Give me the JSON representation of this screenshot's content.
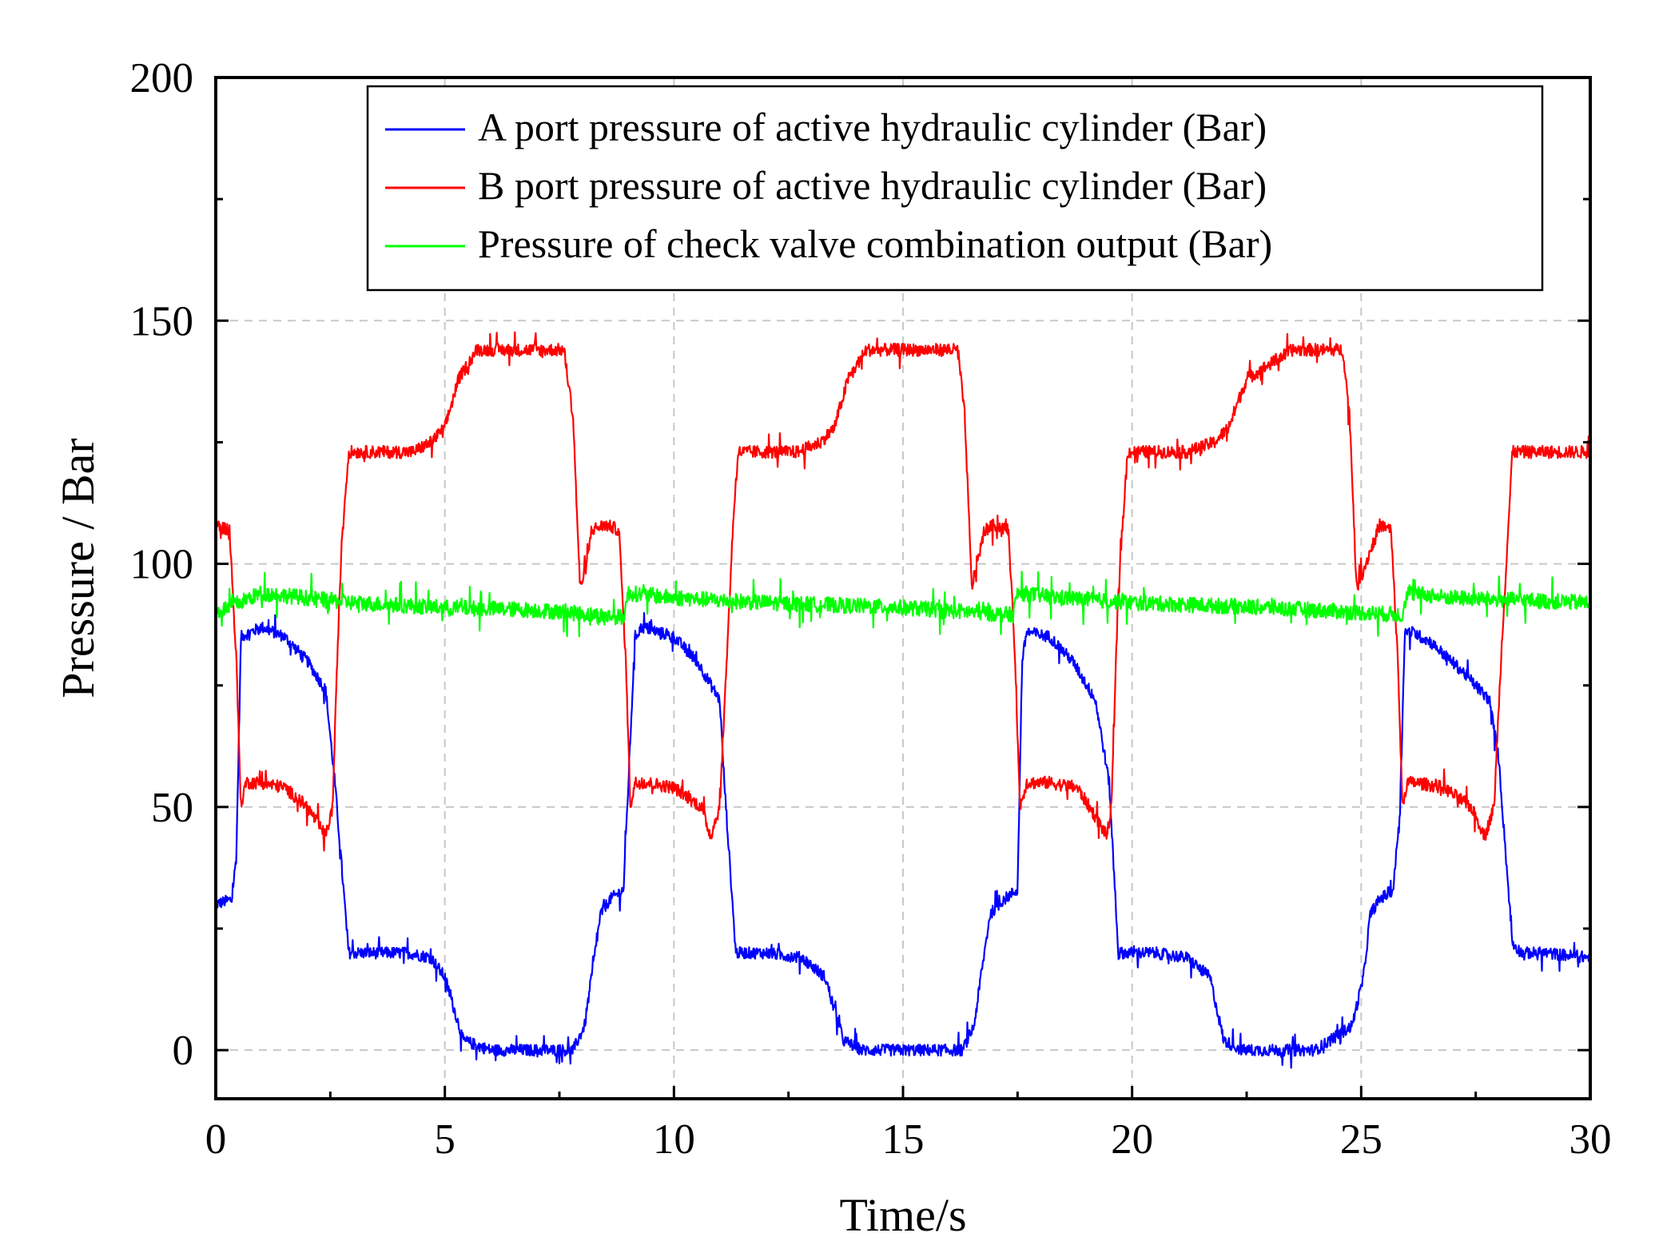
{
  "chart_data": {
    "type": "line",
    "title": "",
    "xlabel": "Time/s",
    "ylabel": "Pressure / Bar",
    "xlim": [
      0,
      30
    ],
    "ylim": [
      -10,
      200
    ],
    "xticks": [
      0,
      5,
      10,
      15,
      20,
      25,
      30
    ],
    "yticks": [
      0,
      50,
      100,
      150,
      200
    ],
    "grid": true,
    "legend_position": "top-center",
    "series": [
      {
        "name": "A port pressure of active hydraulic cylinder (Bar)",
        "color": "#0000ff",
        "x": [
          0.0,
          0.35,
          0.45,
          0.55,
          1.0,
          1.5,
          2.0,
          2.4,
          2.6,
          2.9,
          3.5,
          4.2,
          4.7,
          5.0,
          5.4,
          6.0,
          7.0,
          7.8,
          8.05,
          8.2,
          8.4,
          8.6,
          8.9,
          9.15,
          9.3,
          10.0,
          10.5,
          11.0,
          11.1,
          11.35,
          11.6,
          12.0,
          12.8,
          13.3,
          13.7,
          14.1,
          15.0,
          16.3,
          16.55,
          16.7,
          16.9,
          17.2,
          17.5,
          17.6,
          17.7,
          18.2,
          18.7,
          19.2,
          19.5,
          19.7,
          19.9,
          20.5,
          21.2,
          21.7,
          22.0,
          22.4,
          23.0,
          24.0,
          24.8,
          25.05,
          25.2,
          25.4,
          25.7,
          25.85,
          25.95,
          26.1,
          26.5,
          27.2,
          27.8,
          28.0,
          28.3,
          28.5,
          29.0,
          30.0
        ],
        "values": [
          30,
          31,
          40,
          85,
          87,
          85,
          80,
          74,
          55,
          20,
          20,
          20,
          19,
          15,
          2,
          0,
          0,
          0,
          5,
          15,
          28,
          31,
          33,
          85,
          87,
          85,
          80,
          72,
          55,
          20,
          20,
          20,
          19,
          15,
          2,
          0,
          0,
          0,
          5,
          15,
          28,
          31,
          33,
          80,
          86,
          85,
          80,
          72,
          55,
          20,
          20,
          20,
          19,
          15,
          2,
          0,
          0,
          0,
          5,
          15,
          28,
          31,
          33,
          50,
          86,
          86,
          84,
          78,
          72,
          60,
          22,
          20,
          20,
          19
        ]
      },
      {
        "name": "B port pressure of active hydraulic cylinder (Bar)",
        "color": "#ff0000",
        "x": [
          0.0,
          0.3,
          0.45,
          0.55,
          0.65,
          1.0,
          1.5,
          2.0,
          2.4,
          2.55,
          2.65,
          2.75,
          2.9,
          3.0,
          3.5,
          4.3,
          4.7,
          5.0,
          5.3,
          5.7,
          6.5,
          7.6,
          7.8,
          7.95,
          8.1,
          8.2,
          8.5,
          8.8,
          8.95,
          9.05,
          9.15,
          9.4,
          10.0,
          10.6,
          10.8,
          11.0,
          11.15,
          11.3,
          11.4,
          12.0,
          12.7,
          13.2,
          13.5,
          13.8,
          14.2,
          15.0,
          16.2,
          16.35,
          16.5,
          16.6,
          16.8,
          17.0,
          17.3,
          17.45,
          17.55,
          17.7,
          18.2,
          18.8,
          19.2,
          19.45,
          19.55,
          19.7,
          19.9,
          20.5,
          21.2,
          21.8,
          22.1,
          22.5,
          23.5,
          24.6,
          24.75,
          24.9,
          25.1,
          25.4,
          25.65,
          25.8,
          25.9,
          26.0,
          26.2,
          26.8,
          27.4,
          27.7,
          27.9,
          28.05,
          28.3,
          29.0,
          30.0
        ],
        "values": [
          108,
          107,
          80,
          50,
          55,
          55,
          54,
          50,
          44,
          50,
          80,
          105,
          123,
          123,
          123,
          123,
          125,
          128,
          138,
          144,
          144,
          144,
          130,
          95,
          100,
          107,
          108,
          107,
          80,
          50,
          55,
          55,
          54,
          50,
          44,
          50,
          80,
          110,
          123,
          123,
          123,
          125,
          128,
          138,
          144,
          144,
          144,
          130,
          95,
          100,
          107,
          108,
          107,
          80,
          50,
          55,
          55,
          54,
          48,
          44,
          50,
          95,
          123,
          123,
          123,
          125,
          128,
          138,
          144,
          144,
          130,
          95,
          100,
          108,
          107,
          80,
          50,
          55,
          55,
          54,
          50,
          44,
          50,
          80,
          123,
          123,
          123
        ]
      },
      {
        "name": "Pressure of check valve combination output (Bar)",
        "color": "#00ff00",
        "x": [
          0.0,
          0.5,
          1.0,
          2.0,
          3.0,
          5.0,
          7.0,
          8.9,
          9.0,
          10.0,
          12.0,
          15.0,
          17.4,
          17.5,
          18.5,
          20.0,
          23.0,
          25.9,
          26.0,
          27.0,
          30.0
        ],
        "values": [
          90,
          92,
          94,
          93,
          92,
          91,
          90.5,
          89,
          94,
          93,
          92,
          91,
          89.5,
          94,
          93,
          92,
          91,
          89.5,
          94,
          93,
          92
        ]
      }
    ]
  }
}
